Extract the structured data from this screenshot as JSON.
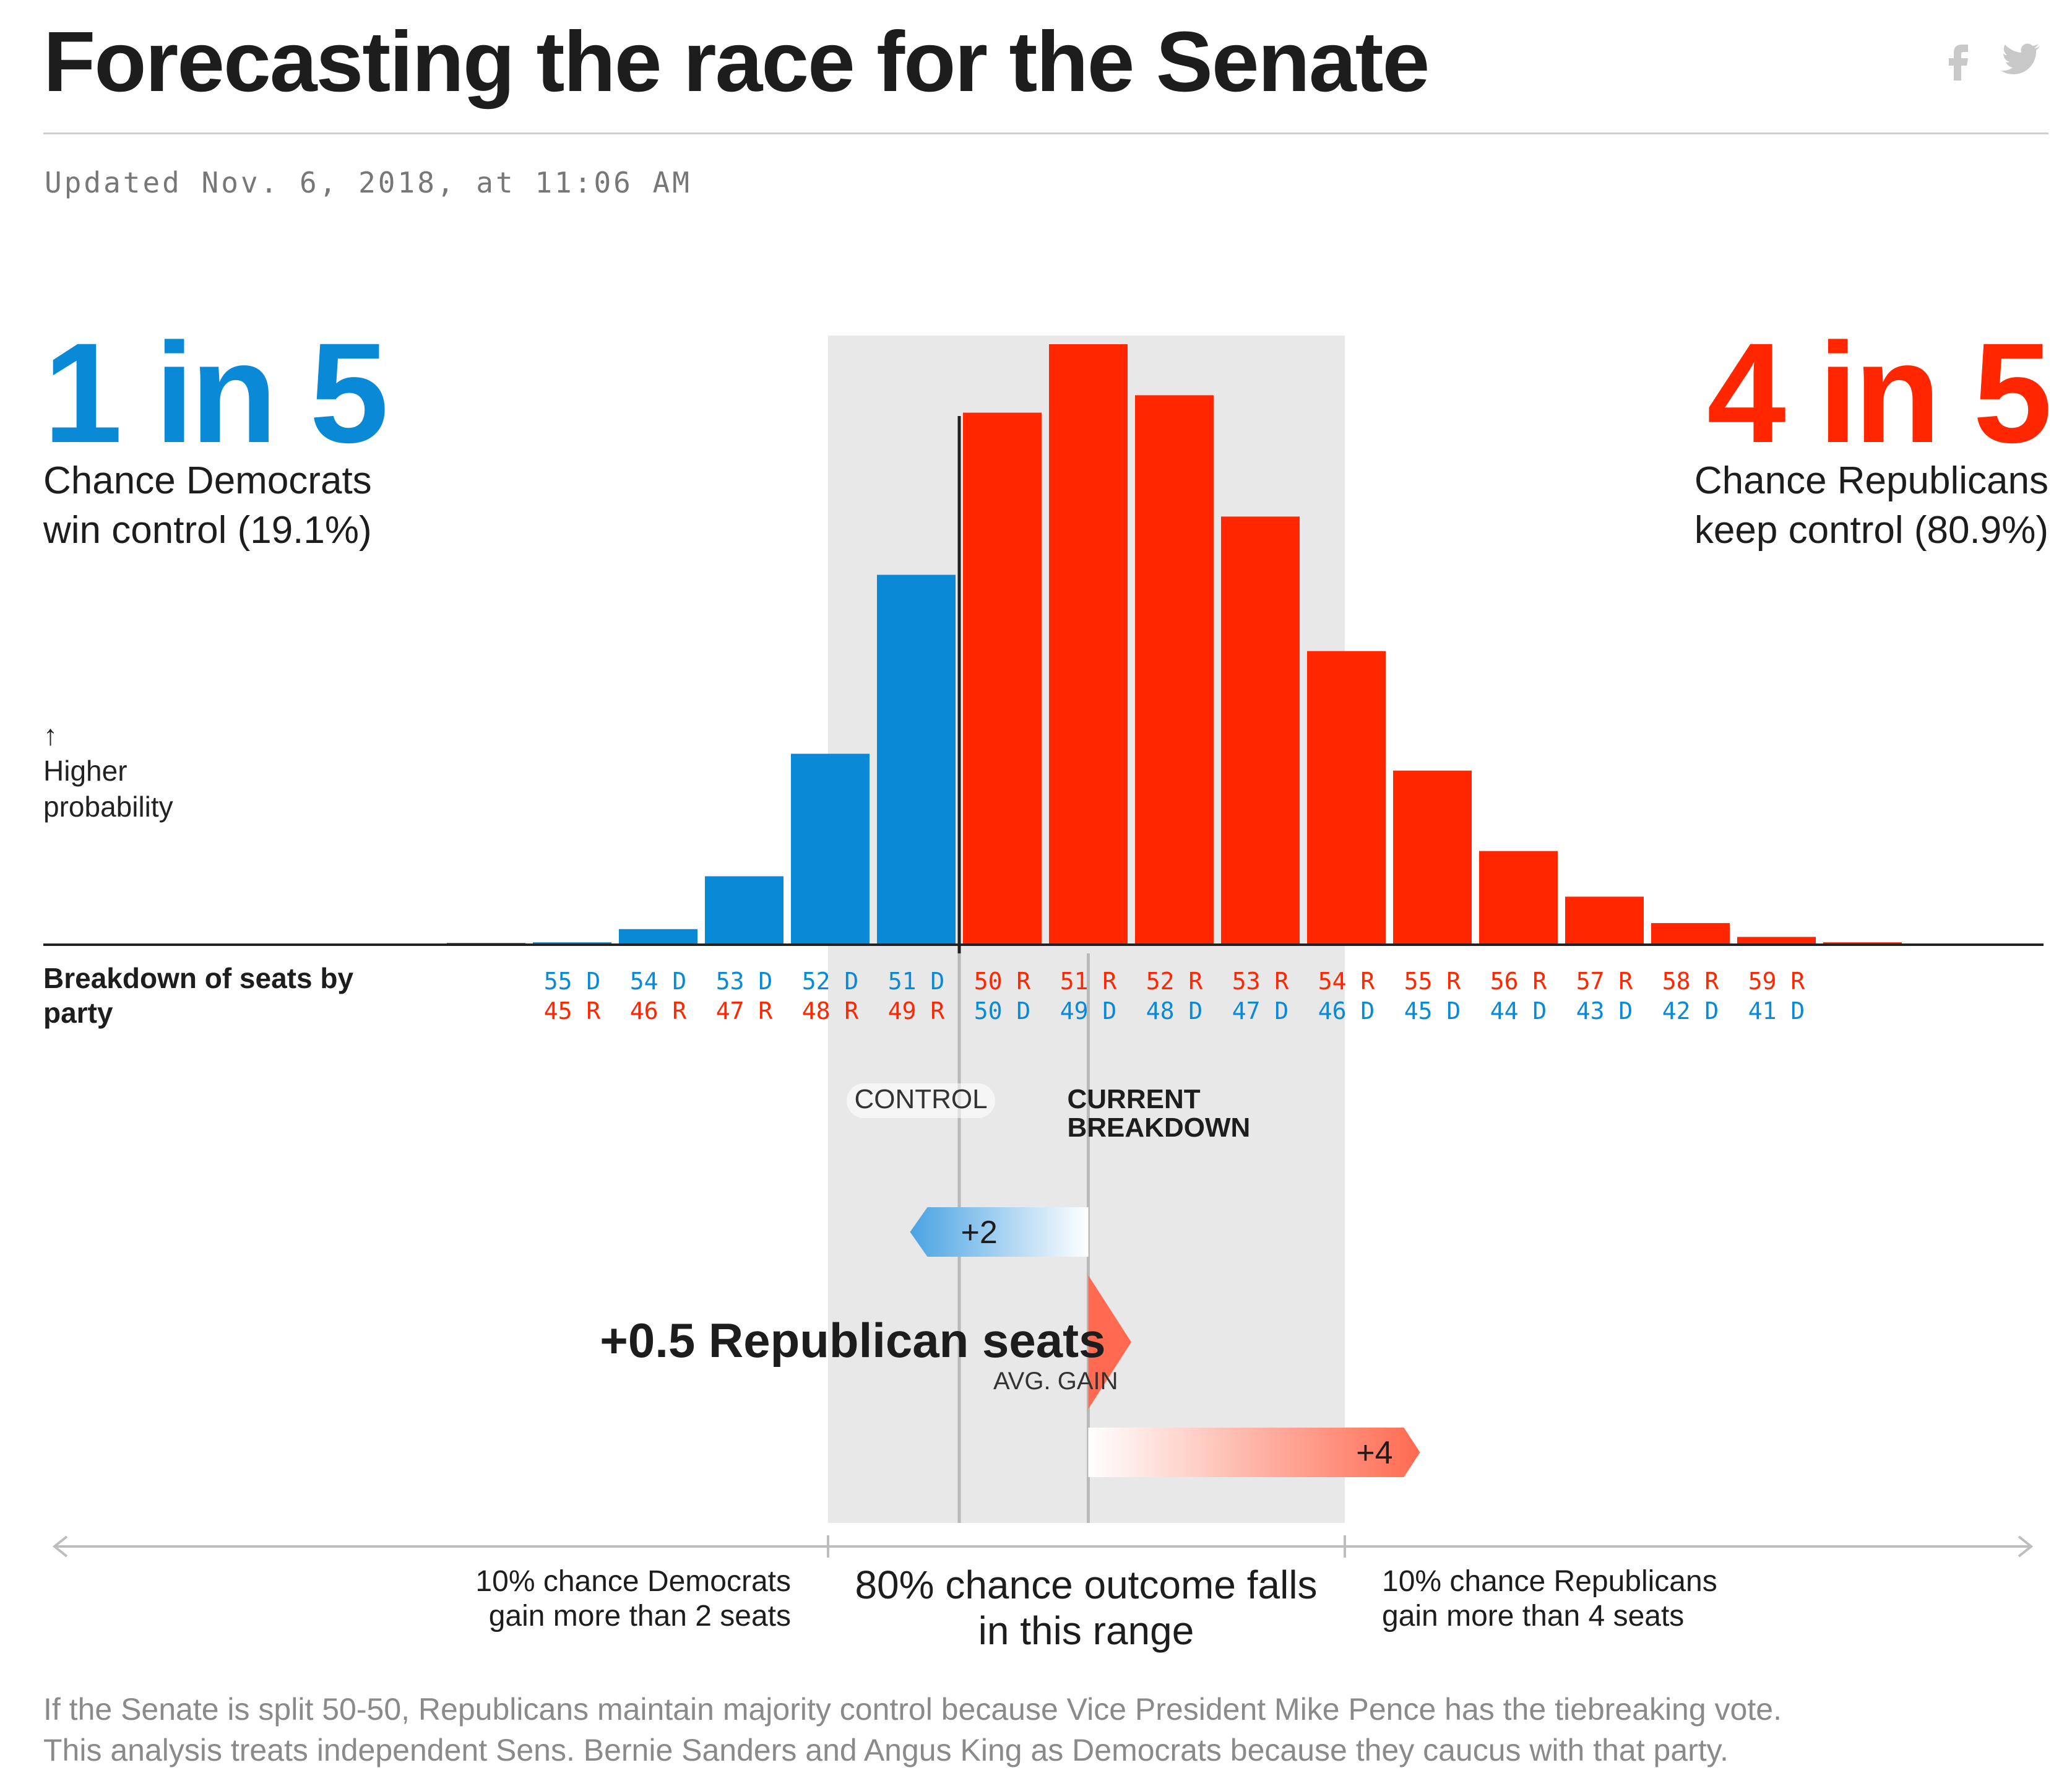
{
  "header": {
    "title": "Forecasting the race for the Senate",
    "updated": "Updated Nov. 6, 2018, at 11:06 AM",
    "share_icons": [
      "facebook-icon",
      "twitter-icon"
    ]
  },
  "democrats": {
    "odds": "1 in 5",
    "chance_line1": "Chance Democrats",
    "chance_line2": "win control (19.1%)",
    "color": "#0a8ad6"
  },
  "republicans": {
    "odds": "4 in 5",
    "chance_line1": "Chance Republicans",
    "chance_line2": "keep control (80.9%)",
    "color": "#ff2600"
  },
  "probability_label": {
    "arrow": "↑",
    "line1": "Higher",
    "line2": "probability"
  },
  "breakdown_label": {
    "line1": "Breakdown of seats by",
    "line2": "party"
  },
  "chart_data": {
    "type": "bar",
    "ylabel": "Higher probability",
    "xlabel": "Breakdown of seats by party",
    "bars": [
      {
        "seats": "56 D / 44 R",
        "party": "D",
        "probability": 0.3
      },
      {
        "seats": "55 D / 45 R",
        "party": "D",
        "probability": 0.4
      },
      {
        "seats": "54 D / 46 R",
        "party": "D",
        "probability": 2.6
      },
      {
        "seats": "53 D / 47 R",
        "party": "D",
        "probability": 11.4
      },
      {
        "seats": "52 D / 48 R",
        "party": "D",
        "probability": 31.8
      },
      {
        "seats": "51 D / 49 R",
        "party": "D",
        "probability": 61.6
      },
      {
        "seats": "50 R / 50 D",
        "party": "R",
        "probability": 88.6
      },
      {
        "seats": "51 R / 49 D",
        "party": "R",
        "probability": 100
      },
      {
        "seats": "52 R / 48 D",
        "party": "R",
        "probability": 91.5
      },
      {
        "seats": "53 R / 47 D",
        "party": "R",
        "probability": 71.3
      },
      {
        "seats": "54 R / 46 D",
        "party": "R",
        "probability": 48.9
      },
      {
        "seats": "55 R / 45 D",
        "party": "R",
        "probability": 29.0
      },
      {
        "seats": "56 R / 44 D",
        "party": "R",
        "probability": 15.6
      },
      {
        "seats": "57 R / 43 D",
        "party": "R",
        "probability": 8.0
      },
      {
        "seats": "58 R / 42 D",
        "party": "R",
        "probability": 3.6
      },
      {
        "seats": "59 R / 41 D",
        "party": "R",
        "probability": 1.3
      },
      {
        "seats": "60 R / 40 D",
        "party": "R",
        "probability": 0.4
      }
    ],
    "ticks": [
      {
        "top": "55 D",
        "bottom": "45 R",
        "top_party": "D"
      },
      {
        "top": "54 D",
        "bottom": "46 R",
        "top_party": "D"
      },
      {
        "top": "53 D",
        "bottom": "47 R",
        "top_party": "D"
      },
      {
        "top": "52 D",
        "bottom": "48 R",
        "top_party": "D"
      },
      {
        "top": "51 D",
        "bottom": "49 R",
        "top_party": "D"
      },
      {
        "top": "50 R",
        "bottom": "50 D",
        "top_party": "R"
      },
      {
        "top": "51 R",
        "bottom": "49 D",
        "top_party": "R"
      },
      {
        "top": "52 R",
        "bottom": "48 D",
        "top_party": "R"
      },
      {
        "top": "53 R",
        "bottom": "47 D",
        "top_party": "R"
      },
      {
        "top": "54 R",
        "bottom": "46 D",
        "top_party": "R"
      },
      {
        "top": "55 R",
        "bottom": "45 D",
        "top_party": "R"
      },
      {
        "top": "56 R",
        "bottom": "44 D",
        "top_party": "R"
      },
      {
        "top": "57 R",
        "bottom": "43 D",
        "top_party": "R"
      },
      {
        "top": "58 R",
        "bottom": "42 D",
        "top_party": "R"
      },
      {
        "top": "59 R",
        "bottom": "41 D",
        "top_party": "R"
      }
    ],
    "range_80": {
      "from": "51 D / 49 R",
      "to": "55 R / 45 D"
    },
    "markers": {
      "control": "CONTROL",
      "current_line1": "CURRENT",
      "current_line2": "BREAKDOWN"
    },
    "gains": {
      "dem_range": "+2",
      "rep_range": "+4",
      "avg_gain": "+0.5 Republican seats",
      "avg_gain_label": "AVG. GAIN",
      "avg_gain_value": 0.5
    },
    "range_notes": {
      "left_line1": "10% chance Democrats",
      "left_line2": "gain more than 2 seats",
      "middle_line1": "80% chance outcome falls",
      "middle_line2": "in this range",
      "right_line1": "10% chance Republicans",
      "right_line2": "gain more than 4 seats"
    },
    "colors": {
      "dem": "#0a8ad6",
      "rep": "#ff2600",
      "range_bg": "#e8e8e8"
    }
  },
  "footnote": {
    "line1": "If the Senate is split 50-50, Republicans maintain majority control because Vice President Mike Pence has the tiebreaking vote.",
    "line2": "This analysis treats independent Sens. Bernie Sanders and Angus King as Democrats because they caucus with that party."
  }
}
